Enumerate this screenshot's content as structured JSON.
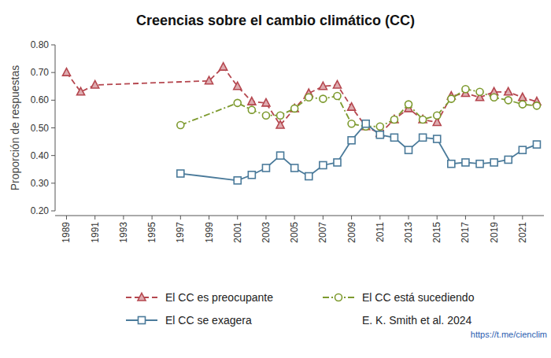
{
  "chart_data": {
    "type": "line",
    "title": "Creencias sobre el cambio climático (CC)",
    "y_label": "Proporción de respuestas",
    "xlim": [
      1988.2,
      2022.5
    ],
    "xticks": [
      1989,
      1991,
      1993,
      1995,
      1997,
      1999,
      2001,
      2003,
      2005,
      2007,
      2009,
      2011,
      2013,
      2015,
      2017,
      2019,
      2021
    ],
    "ylim": [
      0.2,
      0.8
    ],
    "yticks": [
      {
        "value": 0.2,
        "label": "0.20"
      },
      {
        "value": 0.3,
        "label": "0.30"
      },
      {
        "value": 0.4,
        "label": "0.40"
      },
      {
        "value": 0.5,
        "label": "0.50"
      },
      {
        "value": 0.6,
        "label": "0.60"
      },
      {
        "value": 0.7,
        "label": "0.70"
      },
      {
        "value": 0.8,
        "label": "0.80"
      }
    ],
    "grid": false,
    "legend": "bottom",
    "series": [
      {
        "name": "El CC es preocupante",
        "color": "#b5474f",
        "marker": "triangle",
        "line_style": "dashed",
        "x": [
          1989,
          1990,
          1991,
          1999,
          2000,
          2001,
          2002,
          2003,
          2004,
          2005,
          2006,
          2007,
          2008,
          2009,
          2010,
          2011,
          2012,
          2013,
          2014,
          2015,
          2016,
          2017,
          2018,
          2019,
          2020,
          2021,
          2022
        ],
        "values": [
          0.7,
          0.63,
          0.655,
          0.67,
          0.72,
          0.65,
          0.595,
          0.59,
          0.51,
          0.57,
          0.625,
          0.65,
          0.655,
          0.575,
          0.505,
          0.48,
          0.53,
          0.57,
          0.53,
          0.52,
          0.615,
          0.625,
          0.61,
          0.63,
          0.63,
          0.61,
          0.595
        ]
      },
      {
        "name": "El CC está sucediendo",
        "color": "#7d9a2e",
        "marker": "circle",
        "line_style": "dashdot",
        "x": [
          1997,
          2001,
          2002,
          2003,
          2004,
          2005,
          2006,
          2007,
          2008,
          2009,
          2010,
          2011,
          2012,
          2013,
          2014,
          2015,
          2016,
          2017,
          2018,
          2019,
          2020,
          2021,
          2022
        ],
        "values": [
          0.51,
          0.59,
          0.565,
          0.545,
          0.545,
          0.57,
          0.61,
          0.605,
          0.615,
          0.515,
          0.505,
          0.505,
          0.53,
          0.585,
          0.53,
          0.545,
          0.605,
          0.64,
          0.63,
          0.61,
          0.6,
          0.585,
          0.58
        ]
      },
      {
        "name": "El CC se exagera",
        "color": "#4a7a9a",
        "marker": "square",
        "line_style": "solid",
        "x": [
          1997,
          2001,
          2002,
          2003,
          2004,
          2005,
          2006,
          2007,
          2008,
          2009,
          2010,
          2011,
          2012,
          2013,
          2014,
          2015,
          2016,
          2017,
          2018,
          2019,
          2020,
          2021,
          2022
        ],
        "values": [
          0.335,
          0.31,
          0.33,
          0.355,
          0.4,
          0.355,
          0.325,
          0.365,
          0.375,
          0.455,
          0.515,
          0.475,
          0.465,
          0.42,
          0.465,
          0.46,
          0.37,
          0.375,
          0.37,
          0.375,
          0.385,
          0.42,
          0.44
        ]
      }
    ],
    "annotations": [
      "E. K. Smith et al. 2024",
      "https://t.me/cienclim"
    ]
  }
}
